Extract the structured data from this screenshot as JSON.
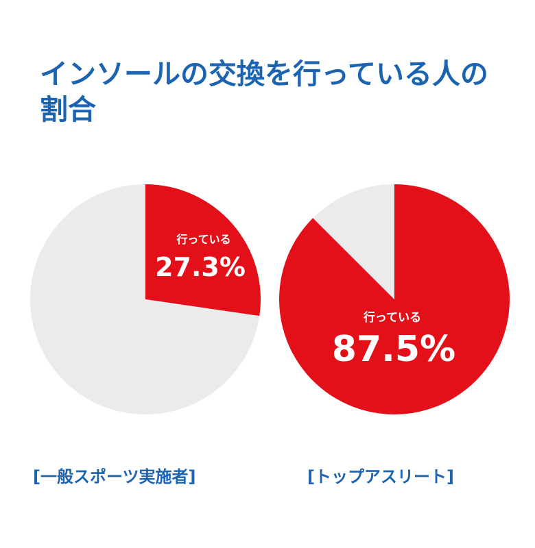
{
  "title": "インソールの交換を行っている人の割合",
  "colors": {
    "highlight": "#e31019",
    "rest": "#ebebeb",
    "title": "#1c63b0",
    "label": "#ffffff"
  },
  "chart_data": [
    {
      "type": "pie",
      "slices": [
        {
          "label": "行っている",
          "value": 27.3,
          "value_label": "27.3%"
        },
        {
          "value": 72.7
        }
      ],
      "caption": "[一般スポーツ実施者]"
    },
    {
      "type": "pie",
      "slices": [
        {
          "label": "行っている",
          "value": 87.5,
          "value_label": "87.5%"
        },
        {
          "value": 12.5
        }
      ],
      "caption": "[トップアスリート]"
    }
  ]
}
